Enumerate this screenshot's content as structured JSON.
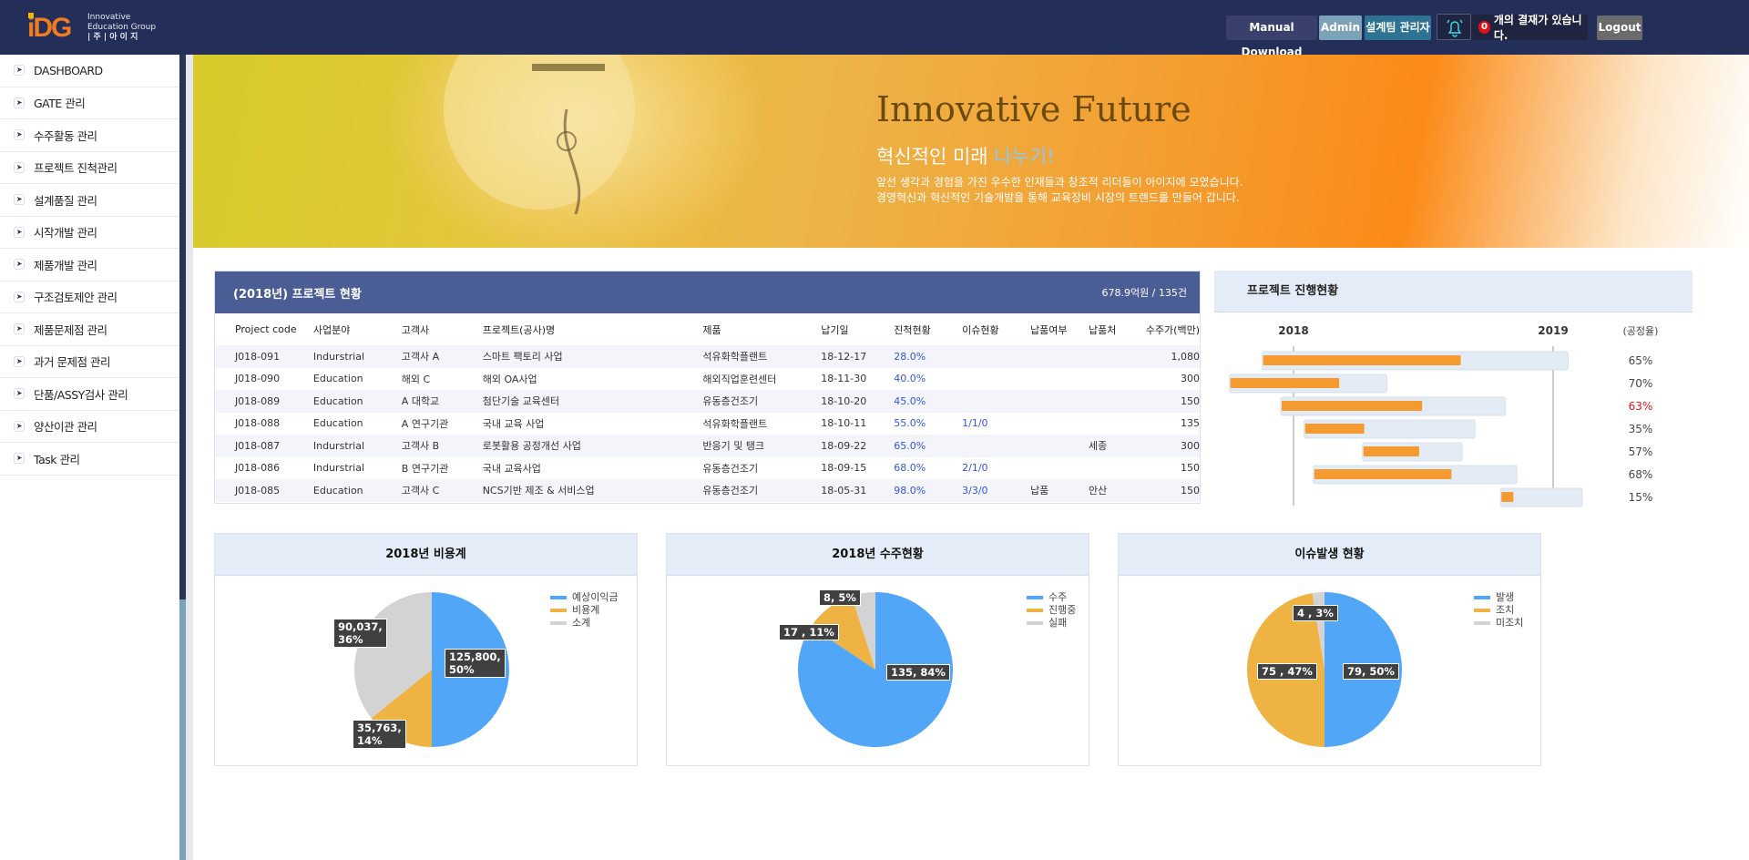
{
  "header": {
    "logo_mark": "iDG",
    "logo_line1": "Innovative",
    "logo_line2": "Education Group",
    "logo_line3": "| 주 |  아 이 지",
    "manual_download": "Manual Download",
    "admin": "Admin",
    "team_admin": "설계팀 관리자",
    "notif_count": "0",
    "notif_text": "개의 결재가 있습니다.",
    "logout": "Logout"
  },
  "sidebar": {
    "items": [
      {
        "label": "DASHBOARD"
      },
      {
        "label": "GATE 관리"
      },
      {
        "label": "수주활동 관리"
      },
      {
        "label": "프로젝트 진척관리"
      },
      {
        "label": "설계품질 관리"
      },
      {
        "label": "시작개발 관리"
      },
      {
        "label": "제품개발 관리"
      },
      {
        "label": "구조검토제안 관리"
      },
      {
        "label": "제품문제점 관리"
      },
      {
        "label": "과거 문제점 관리"
      },
      {
        "label": "단품/ASSY검사 관리"
      },
      {
        "label": "양산이관 관리"
      },
      {
        "label": "Task 관리"
      }
    ]
  },
  "banner": {
    "title": "Innovative Future",
    "subtitle_a": "혁신적인 미래 ",
    "subtitle_b": "나누기!",
    "line1": "앞선 생각과 경험을 가진 우수한 인재들과 창조적 리더들이 아이지에 모였습니다.",
    "line2": "경영혁신과 혁신적인 기술개발을 통해 교육장비 시장의 트렌드를 만들어 갑니다."
  },
  "projects": {
    "title": "(2018년) 프로젝트 현황",
    "summary": "678.9억원 / 135건",
    "columns": [
      "Project code",
      "사업분야",
      "고객사",
      "프로젝트(공사)명",
      "제품",
      "납기일",
      "진척현황",
      "이슈현황",
      "납품여부",
      "납품처",
      "수주가(백만)"
    ],
    "rows": [
      [
        "J018-091",
        "Indurstrial",
        "고객사 A",
        "스마트 팩토리 사업",
        "석유화학플랜트",
        "18-12-17",
        "28.0%",
        "",
        "",
        "",
        "1,080"
      ],
      [
        "J018-090",
        "Education",
        "해외 C",
        "해외 OA사업",
        "해외직업훈련센터",
        "18-11-30",
        "40.0%",
        "",
        "",
        "",
        "300"
      ],
      [
        "J018-089",
        "Education",
        "A 대학교",
        "첨단기술 교육센터",
        "유동층건조기",
        "18-10-20",
        "45.0%",
        "",
        "",
        "",
        "150"
      ],
      [
        "J018-088",
        "Education",
        "A 연구기관",
        "국내 교육 사업",
        "석유화학플랜트",
        "18-10-11",
        "55.0%",
        "1/1/0",
        "",
        "",
        "135"
      ],
      [
        "J018-087",
        "Indurstrial",
        "고객사 B",
        "로봇활용 공정개선 사업",
        "반응기 및 탱크",
        "18-09-22",
        "65.0%",
        "",
        "",
        "세종",
        "300"
      ],
      [
        "J018-086",
        "Indurstrial",
        "B 연구기관",
        "국내 교육사업",
        "유동층건조기",
        "18-09-15",
        "68.0%",
        "2/1/0",
        "",
        "",
        "150"
      ],
      [
        "J018-085",
        "Education",
        "고객사 C",
        "NCS기반 제조 & 서비스업",
        "유동층건조기",
        "18-05-31",
        "98.0%",
        "3/3/0",
        "납품",
        "안산",
        "150"
      ]
    ]
  },
  "chart_data": [
    {
      "type": "gantt",
      "title": "프로젝트 진행현황",
      "tick_labels": [
        "2018",
        "2019"
      ],
      "rate_label": "(공정율)",
      "bar_color": "#f59a2f",
      "track_color": "#e3ebf5",
      "rows": [
        {
          "start": "2017-11-18",
          "end": "2019-01-22",
          "progress": 65,
          "label": "65%",
          "color": "#444"
        },
        {
          "start": "2017-10-03",
          "end": "2018-05-12",
          "progress": 70,
          "label": "70%",
          "color": "#444"
        },
        {
          "start": "2017-12-14",
          "end": "2018-10-26",
          "progress": 63,
          "label": "63%",
          "color": "#e0141e"
        },
        {
          "start": "2018-01-16",
          "end": "2018-09-13",
          "progress": 35,
          "label": "35%",
          "color": "#444"
        },
        {
          "start": "2018-04-08",
          "end": "2018-08-26",
          "progress": 57,
          "label": "57%",
          "color": "#444"
        },
        {
          "start": "2018-01-29",
          "end": "2018-11-11",
          "progress": 68,
          "label": "68%",
          "color": "#444"
        },
        {
          "start": "2018-10-19",
          "end": "2019-02-11",
          "progress": 15,
          "label": "15%",
          "color": "#444"
        }
      ]
    },
    {
      "type": "pie",
      "title": "2018년 비용계",
      "legend_position": "top-right",
      "slices": [
        {
          "name": "예상이익금",
          "value": 125800,
          "label": "125,800,\n50%",
          "color": "#52a6f7"
        },
        {
          "name": "비용계",
          "value": 35763,
          "label": "35,763,\n14%",
          "color": "#eeb343"
        },
        {
          "name": "소계",
          "value": 90037,
          "label": "90,037,\n36%",
          "color": "#d3d3d3"
        }
      ]
    },
    {
      "type": "pie",
      "title": "2018년 수주현황",
      "legend_position": "top-right",
      "slices": [
        {
          "name": "수주",
          "value": 135,
          "label": "135, 84%",
          "color": "#52a6f7"
        },
        {
          "name": "진행중",
          "value": 17,
          "label": "17 , 11%",
          "color": "#eeb343"
        },
        {
          "name": "실패",
          "value": 8,
          "label": "8, 5%",
          "color": "#d3d3d3"
        }
      ]
    },
    {
      "type": "pie",
      "title": "이슈발생 현황",
      "legend_position": "top-right",
      "slices": [
        {
          "name": "발생",
          "value": 79,
          "label": "79, 50%",
          "color": "#52a6f7"
        },
        {
          "name": "조치",
          "value": 75,
          "label": "75 , 47%",
          "color": "#eeb343"
        },
        {
          "name": "미조치",
          "value": 4,
          "label": "4 , 3%",
          "color": "#d3d3d3"
        }
      ]
    }
  ]
}
